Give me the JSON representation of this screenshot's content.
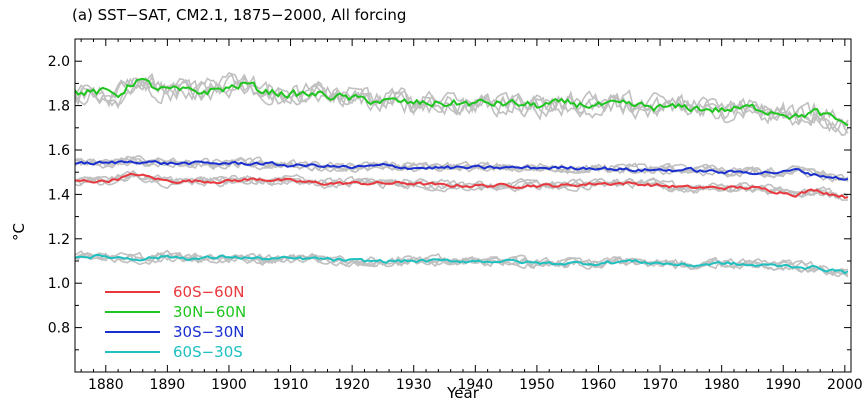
{
  "chart_data": {
    "type": "line",
    "title": "(a) SST−SAT, CM2.1, 1875−2000, All forcing",
    "xlabel": "Year",
    "ylabel": "°C",
    "xlim": [
      1875,
      2001
    ],
    "ylim": [
      0.6,
      2.1
    ],
    "xticks": [
      1880,
      1890,
      1900,
      1910,
      1920,
      1930,
      1940,
      1950,
      1960,
      1970,
      1980,
      1990,
      2000
    ],
    "yticks": [
      0.8,
      1.0,
      1.2,
      1.4,
      1.6,
      1.8,
      2.0
    ],
    "ytick_labels": [
      "0.8",
      "1.0",
      "1.2",
      "1.4",
      "1.6",
      "1.8",
      "2.0"
    ],
    "grid": false,
    "legend_position": "bottom-left",
    "ensemble_color": "#c0c0c0",
    "series": [
      {
        "name": "60S−60N",
        "color": "#e8383d",
        "x": [
          1875,
          1880,
          1885,
          1890,
          1895,
          1900,
          1905,
          1910,
          1915,
          1920,
          1925,
          1930,
          1935,
          1940,
          1945,
          1950,
          1955,
          1960,
          1965,
          1970,
          1975,
          1980,
          1985,
          1990,
          1992,
          1995,
          2000
        ],
        "values": [
          1.46,
          1.46,
          1.49,
          1.46,
          1.46,
          1.46,
          1.47,
          1.46,
          1.45,
          1.45,
          1.45,
          1.45,
          1.44,
          1.44,
          1.44,
          1.44,
          1.44,
          1.45,
          1.45,
          1.44,
          1.43,
          1.43,
          1.43,
          1.41,
          1.4,
          1.42,
          1.39
        ]
      },
      {
        "name": "30N−60N",
        "color": "#1fc51f",
        "x": [
          1875,
          1880,
          1882,
          1885,
          1888,
          1890,
          1895,
          1900,
          1903,
          1905,
          1910,
          1915,
          1920,
          1925,
          1930,
          1935,
          1940,
          1945,
          1950,
          1955,
          1960,
          1965,
          1970,
          1975,
          1980,
          1985,
          1990,
          1992,
          1995,
          2000
        ],
        "values": [
          1.86,
          1.86,
          1.85,
          1.92,
          1.88,
          1.87,
          1.86,
          1.88,
          1.9,
          1.87,
          1.85,
          1.85,
          1.83,
          1.82,
          1.81,
          1.81,
          1.81,
          1.81,
          1.8,
          1.81,
          1.8,
          1.8,
          1.79,
          1.79,
          1.78,
          1.79,
          1.77,
          1.75,
          1.77,
          1.72
        ]
      },
      {
        "name": "30S−30N",
        "color": "#1a2fd0",
        "x": [
          1875,
          1880,
          1885,
          1890,
          1895,
          1900,
          1905,
          1910,
          1915,
          1920,
          1925,
          1930,
          1935,
          1940,
          1945,
          1950,
          1955,
          1960,
          1965,
          1970,
          1975,
          1980,
          1985,
          1990,
          1992,
          1995,
          2000
        ],
        "values": [
          1.54,
          1.54,
          1.55,
          1.54,
          1.54,
          1.54,
          1.54,
          1.53,
          1.53,
          1.52,
          1.53,
          1.52,
          1.52,
          1.52,
          1.52,
          1.52,
          1.52,
          1.52,
          1.51,
          1.51,
          1.51,
          1.5,
          1.5,
          1.5,
          1.51,
          1.49,
          1.47
        ]
      },
      {
        "name": "60S−30S",
        "color": "#1ec0c0",
        "x": [
          1875,
          1880,
          1885,
          1890,
          1895,
          1900,
          1905,
          1910,
          1915,
          1920,
          1925,
          1930,
          1935,
          1940,
          1945,
          1950,
          1955,
          1960,
          1965,
          1970,
          1975,
          1980,
          1985,
          1990,
          1995,
          2000
        ],
        "values": [
          1.12,
          1.12,
          1.11,
          1.12,
          1.11,
          1.12,
          1.11,
          1.11,
          1.11,
          1.1,
          1.1,
          1.1,
          1.1,
          1.1,
          1.1,
          1.09,
          1.09,
          1.09,
          1.1,
          1.09,
          1.08,
          1.09,
          1.08,
          1.08,
          1.07,
          1.05
        ]
      }
    ],
    "legend_order": [
      0,
      1,
      2,
      3
    ]
  }
}
